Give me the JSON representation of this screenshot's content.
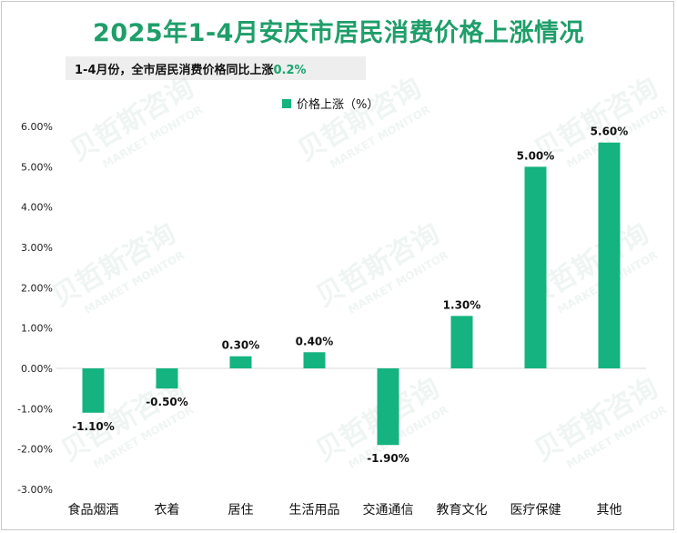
{
  "title": "2025年1-4月安庆市居民消费价格上涨情况",
  "subtitle": {
    "text": "1-4月份，全市居民消费价格同比上涨",
    "highlight": "0.2%"
  },
  "watermark": {
    "cn": "贝哲斯咨询",
    "en": "MARKET MONITOR"
  },
  "colors": {
    "bar": "#14b37f",
    "title": "#1f9e6a",
    "highlight": "#1aa56c",
    "axis": "#d9d9d9"
  },
  "chart_data": {
    "type": "bar",
    "categories": [
      "食品烟酒",
      "衣着",
      "居住",
      "生活用品",
      "交通通信",
      "教育文化",
      "医疗保健",
      "其他"
    ],
    "series": [
      {
        "name": "价格上涨（%）",
        "values": [
          -1.1,
          -0.5,
          0.3,
          0.4,
          -1.9,
          1.3,
          5.0,
          5.6
        ]
      }
    ],
    "data_labels": [
      "-1.10%",
      "-0.50%",
      "0.30%",
      "0.40%",
      "-1.90%",
      "1.30%",
      "5.00%",
      "5.60%"
    ],
    "y_ticks": [
      "6.00%",
      "5.00%",
      "4.00%",
      "3.00%",
      "2.00%",
      "1.00%",
      "0.00%",
      "-1.00%",
      "-2.00%",
      "-3.00%"
    ],
    "ylim": [
      -3,
      6
    ],
    "legend_position": "top-center",
    "grid": false
  }
}
